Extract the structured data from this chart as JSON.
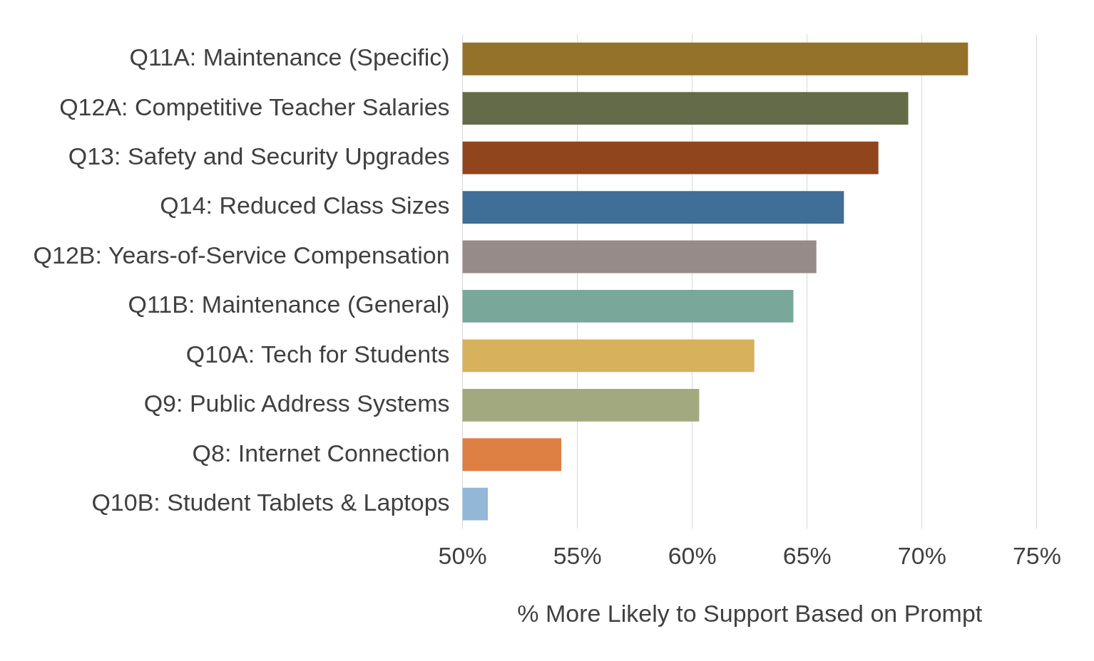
{
  "chart_data": {
    "type": "bar",
    "orientation": "horizontal",
    "xlabel": "% More Likely to Support Based on Prompt",
    "categories": [
      "Q11A: Maintenance (Specific)",
      "Q12A: Competitive Teacher Salaries",
      "Q13: Safety and Security Upgrades",
      "Q14: Reduced Class Sizes",
      "Q12B: Years-of-Service Compensation",
      "Q11B: Maintenance (General)",
      "Q10A: Tech for Students",
      "Q9: Public Address Systems",
      "Q8: Internet Connection",
      "Q10B: Student Tablets & Laptops"
    ],
    "values": [
      72.0,
      69.4,
      68.1,
      66.6,
      65.4,
      64.4,
      62.7,
      60.3,
      54.3,
      51.1
    ],
    "colors": [
      "#94722a",
      "#636b48",
      "#91451c",
      "#3f6e96",
      "#968b89",
      "#79a89b",
      "#d8b15c",
      "#a2a97f",
      "#de7f44",
      "#93b7d6"
    ],
    "xlim": [
      50,
      75
    ],
    "xticks": [
      {
        "value": 50,
        "label": "50%"
      },
      {
        "value": 55,
        "label": "55%"
      },
      {
        "value": 60,
        "label": "60%"
      },
      {
        "value": 65,
        "label": "65%"
      },
      {
        "value": 70,
        "label": "70%"
      },
      {
        "value": 75,
        "label": "75%"
      }
    ],
    "grid": "x",
    "legend": false
  }
}
